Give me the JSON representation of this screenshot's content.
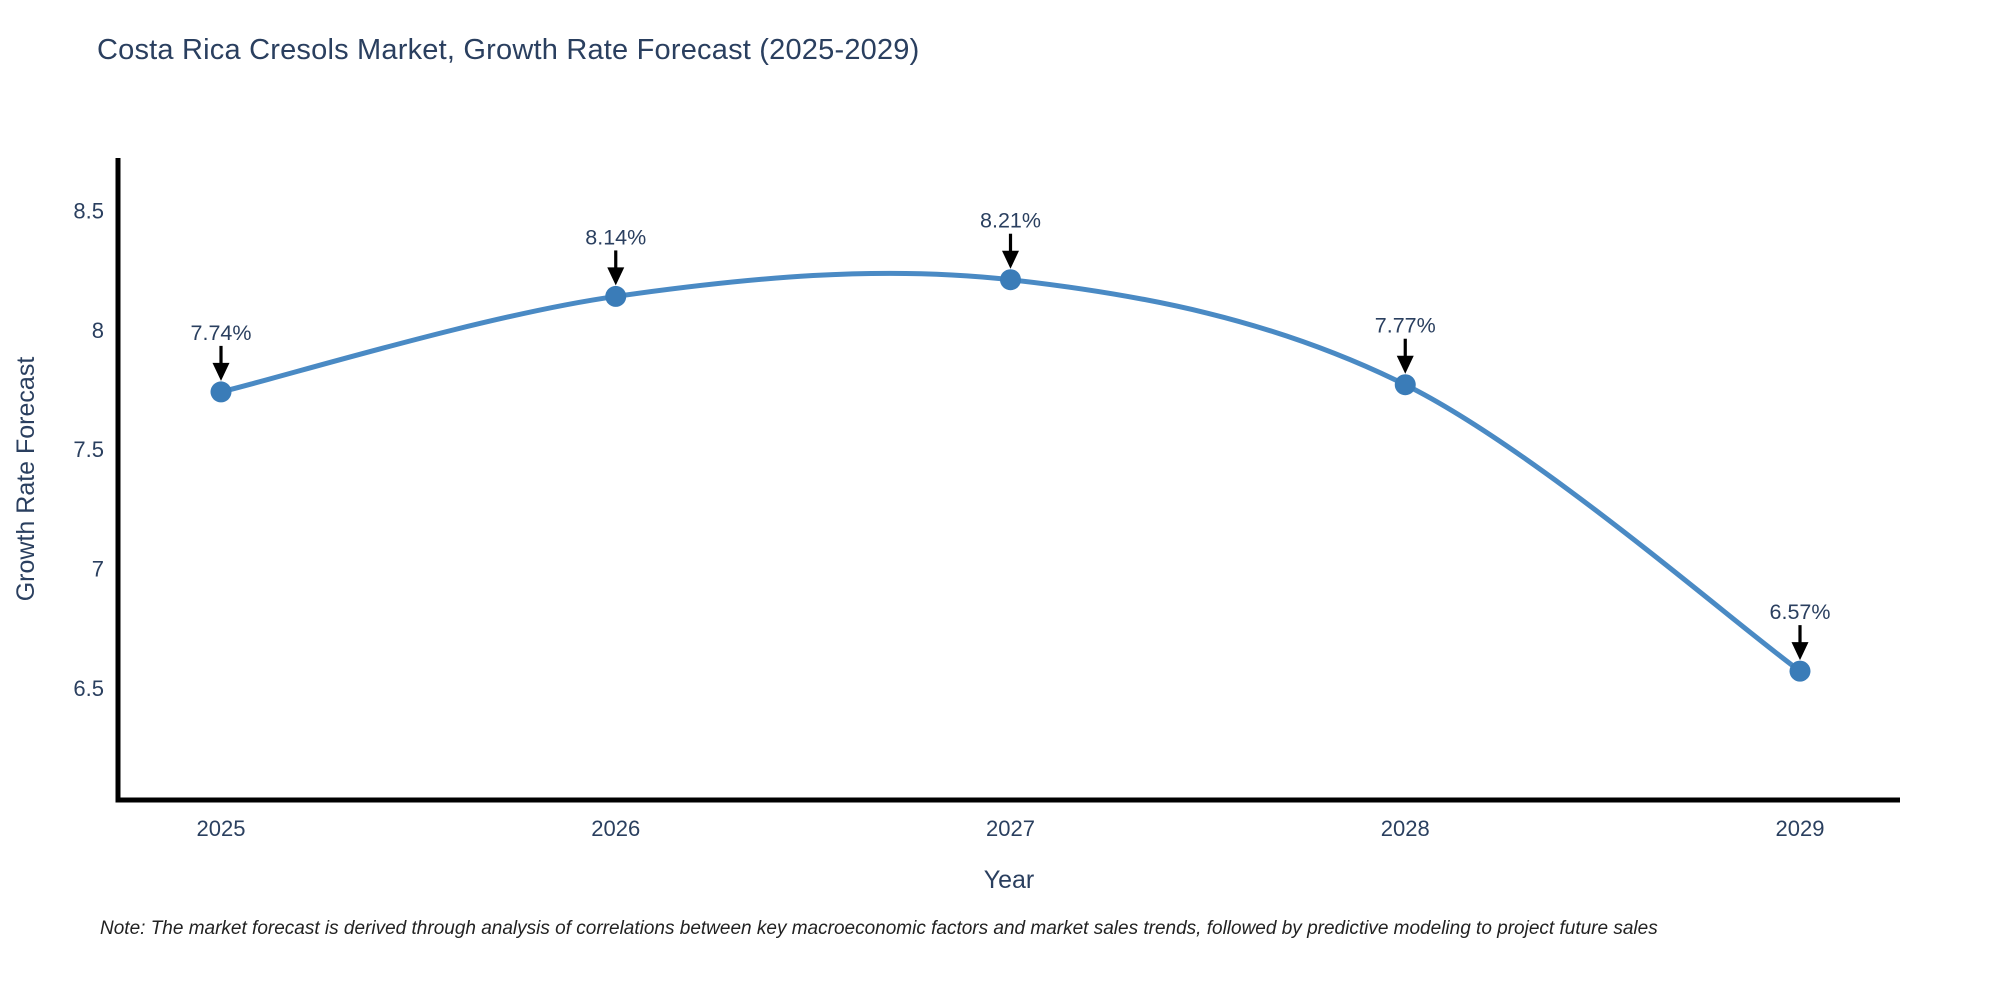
{
  "page": {
    "title": "Costa Rica Cresols Market, Growth Rate Forecast (2025-2029)",
    "note": "Note: The market forecast is derived through analysis of correlations between key macroeconomic factors and market sales trends, followed by predictive modeling to project future sales"
  },
  "chart_data": {
    "type": "line",
    "title": "Costa Rica Cresols Market, Growth Rate Forecast (2025-2029)",
    "x": [
      2025,
      2026,
      2027,
      2028,
      2029
    ],
    "series": [
      {
        "name": "Growth Rate Forecast",
        "values": [
          7.74,
          8.14,
          8.21,
          7.77,
          6.57
        ]
      }
    ],
    "point_labels": [
      "7.74%",
      "8.14%",
      "8.21%",
      "7.77%",
      "6.57%"
    ],
    "xlabel": "Year",
    "ylabel": "Growth Rate Forecast",
    "xticks": [
      "2025",
      "2026",
      "2027",
      "2028",
      "2029"
    ],
    "yticks": [
      "6.5",
      "7",
      "7.5",
      "8",
      "8.5"
    ],
    "ytick_values": [
      6.5,
      7.0,
      7.5,
      8.0,
      8.5
    ],
    "ylim": [
      6.03,
      8.72
    ],
    "grid": false,
    "legend": "none",
    "line_shape": "spline",
    "colors": {
      "line": "#4a8ac4",
      "marker": "#3a7cb8",
      "axis": "#000000",
      "text": "#2a3f5f",
      "annotation_arrow": "#000000",
      "background": "#ffffff"
    }
  }
}
